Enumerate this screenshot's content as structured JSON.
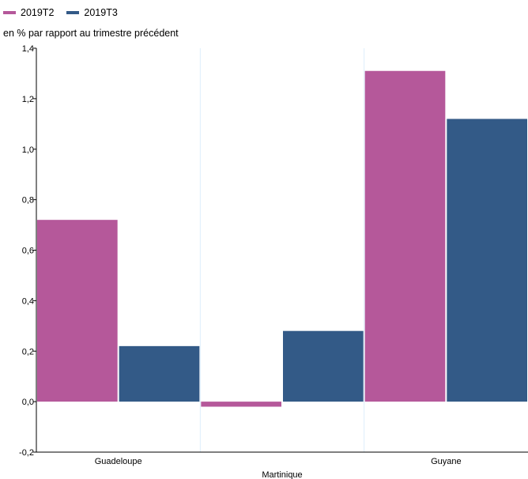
{
  "colors": {
    "series_1": "#b5589a",
    "series_2": "#335a87",
    "axis": "#000000",
    "grid": "#ddeefb"
  },
  "chart_data": {
    "type": "bar",
    "categories": [
      "Guadeloupe",
      "Martinique",
      "Guyane"
    ],
    "series": [
      {
        "name": "2019T2",
        "values": [
          0.72,
          -0.02,
          1.31
        ]
      },
      {
        "name": "2019T3",
        "values": [
          0.22,
          0.28,
          1.12
        ]
      }
    ],
    "ylabel": "en % par rapport au trimestre précédent",
    "ylim": [
      -0.2,
      1.4
    ],
    "yticks": [
      "1,4",
      "1,2",
      "1,0",
      "0,8",
      "0,6",
      "0,4",
      "0,2",
      "0,0",
      "-0,2"
    ],
    "ytick_values": [
      1.4,
      1.2,
      1.0,
      0.8,
      0.6,
      0.4,
      0.2,
      0.0,
      -0.2
    ],
    "legend_position": "top-left",
    "grid": "vertical"
  }
}
